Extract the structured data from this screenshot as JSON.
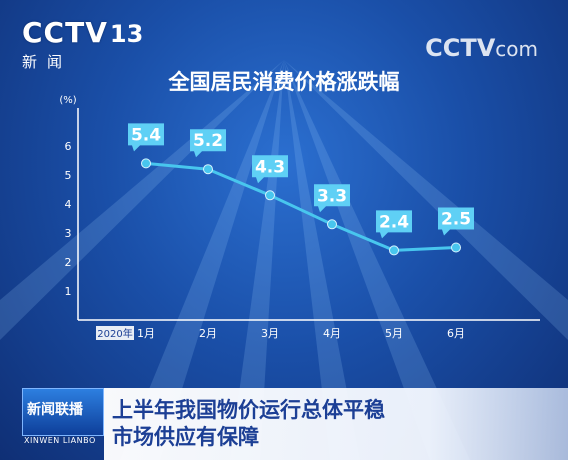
{
  "logos": {
    "channel": "CCTV",
    "channel_number": "13",
    "channel_sub": "新闻",
    "watermark": "CCTV",
    "watermark_suffix": "com"
  },
  "program": {
    "name": "新闻联播",
    "name_en": "XINWEN LIANBO"
  },
  "caption": {
    "line1": "上半年我国物价运行总体平稳",
    "line2": "市场供应有保障"
  },
  "colors": {
    "line": "#48c6ee",
    "label_bg": "#5fd0f5",
    "axis": "#ffffff"
  },
  "chart_data": {
    "type": "line",
    "title": "全国居民消费价格涨跌幅",
    "y_unit_label": "(%)",
    "year_label": "2020年",
    "categories": [
      "1月",
      "2月",
      "3月",
      "4月",
      "5月",
      "6月"
    ],
    "values": [
      5.4,
      5.2,
      4.3,
      3.3,
      2.4,
      2.5
    ],
    "data_labels": [
      "5.4",
      "5.2",
      "4.3",
      "3.3",
      "2.4",
      "2.5"
    ],
    "y_ticks": [
      "1",
      "2",
      "3",
      "4",
      "5",
      "6"
    ],
    "ylim": [
      0,
      7
    ],
    "grid": false
  }
}
